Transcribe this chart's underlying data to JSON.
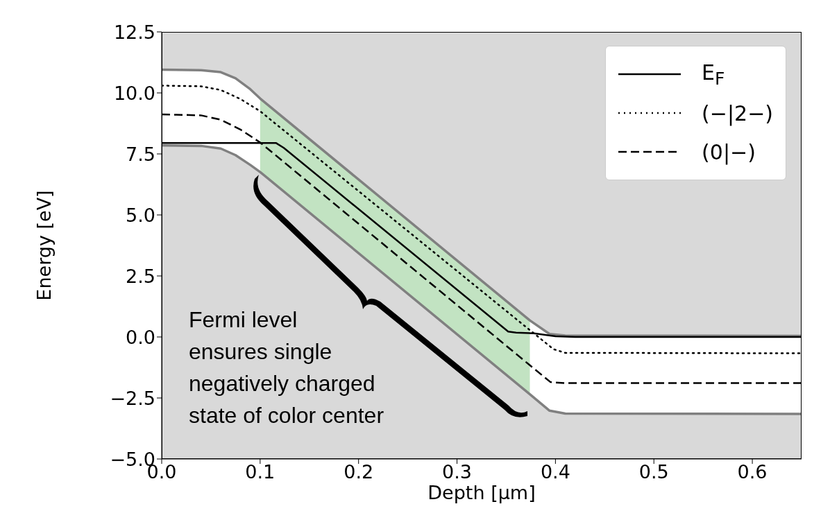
{
  "chart_data": {
    "type": "line",
    "xlabel": "Depth [μm]",
    "ylabel": "Energy [eV]",
    "xlim": [
      0,
      0.65
    ],
    "ylim": [
      -5,
      12.5
    ],
    "xticks": [
      {
        "value": 0,
        "label": "0.0"
      },
      0.1,
      0.2,
      0.3,
      0.4,
      0.5,
      0.6
    ],
    "yticks": [
      {
        "value": -5,
        "label": "−5.0"
      },
      {
        "value": -2.5,
        "label": "−2.5"
      },
      {
        "value": 0,
        "label": "0.0"
      },
      2.5,
      {
        "value": 5,
        "label": "5.0"
      },
      7.5,
      {
        "value": 10,
        "label": "10.0"
      },
      12.5
    ],
    "legend": "top right",
    "annotations": [
      "Fermi level\nensures single\nnegatively charged\nstate of color center"
    ],
    "bands": [
      {
        "axis": "x",
        "from": 0.1,
        "to": 0.374,
        "color": "#c2e3c2"
      }
    ],
    "series": [
      {
        "type": "line",
        "color": "#808080",
        "x": [
          0,
          0.04,
          0.06,
          0.075,
          0.09,
          0.1,
          0.374,
          0.394,
          0.41,
          0.65
        ],
        "values": [
          10.95,
          10.93,
          10.85,
          10.6,
          10.15,
          9.77,
          0.68,
          0.12,
          0.06,
          0.04
        ]
      },
      {
        "type": "line",
        "color": "#808080",
        "x": [
          0,
          0.04,
          0.06,
          0.075,
          0.09,
          0.1,
          0.374,
          0.394,
          0.41,
          0.65
        ],
        "values": [
          7.85,
          7.83,
          7.72,
          7.45,
          7.05,
          6.76,
          -2.35,
          -3.02,
          -3.14,
          -3.15
        ]
      },
      {
        "type": "line",
        "name": "E$_{F}$",
        "color": "#000000",
        "line_style": "solid",
        "x": [
          0,
          0.116,
          0.124,
          0.352,
          0.36,
          0.378,
          0.4,
          0.42,
          0.65
        ],
        "values": [
          7.95,
          7.95,
          7.75,
          0.22,
          0.18,
          0.15,
          0.03,
          0.0,
          0.0
        ]
      },
      {
        "type": "line",
        "name": "(−|2−)",
        "color": "#000000",
        "line_style": "dotted",
        "x": [
          0,
          0.04,
          0.06,
          0.08,
          0.1,
          0.374,
          0.398,
          0.41,
          0.65
        ],
        "values": [
          10.3,
          10.27,
          10.12,
          9.75,
          9.25,
          0.28,
          -0.5,
          -0.65,
          -0.67
        ]
      },
      {
        "type": "line",
        "name": "(0|−)",
        "color": "#000000",
        "line_style": "dashed",
        "x": [
          0,
          0.04,
          0.06,
          0.08,
          0.1,
          0.374,
          0.395,
          0.41,
          0.65
        ],
        "values": [
          9.12,
          9.08,
          8.9,
          8.5,
          7.97,
          -1.16,
          -1.85,
          -1.89,
          -1.89
        ]
      }
    ]
  }
}
